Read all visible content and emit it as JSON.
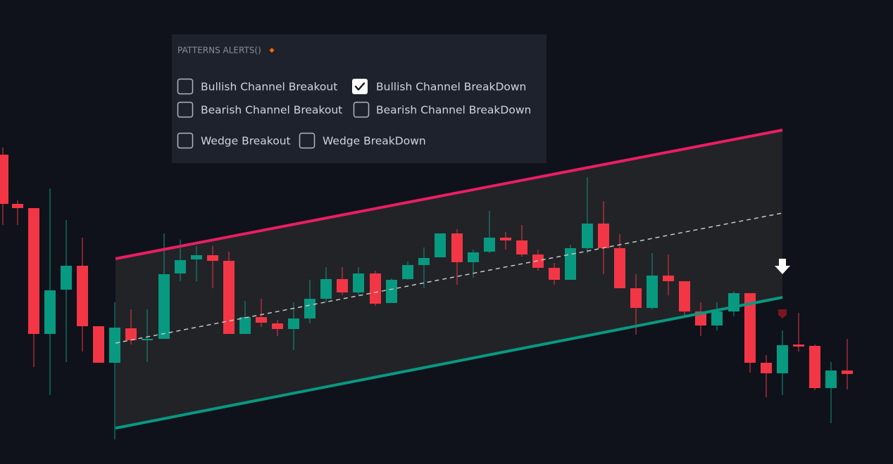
{
  "panel": {
    "title": "PATTERNS ALERTS()",
    "options": [
      {
        "label": "Bullish Channel Breakout",
        "checked": false
      },
      {
        "label": "Bullish Channel BreakDown",
        "checked": true
      },
      {
        "label": "Bearish Channel Breakout",
        "checked": false
      },
      {
        "label": "Bearish Channel BreakDown",
        "checked": false
      },
      {
        "label": "Wedge Breakout",
        "checked": false
      },
      {
        "label": "Wedge BreakDown",
        "checked": false
      }
    ]
  }
}
